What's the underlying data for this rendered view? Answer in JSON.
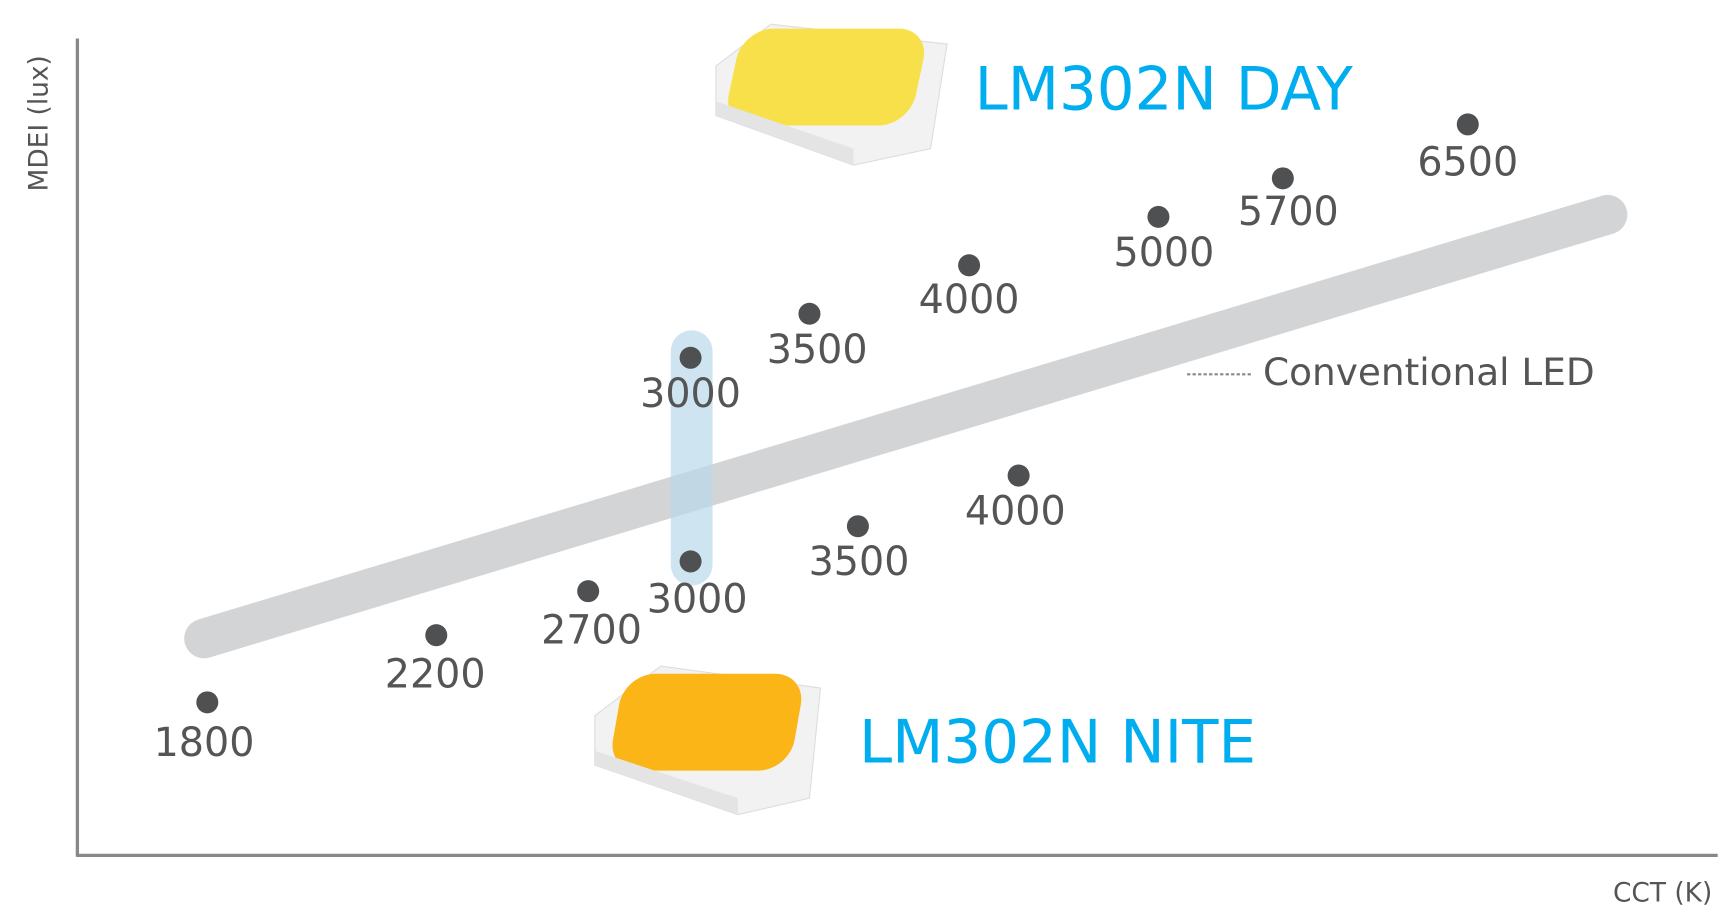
{
  "axes": {
    "y_label": "MDEI (lux)",
    "x_label": "CCT (K)"
  },
  "legend": {
    "label": "Conventional LED"
  },
  "products": [
    {
      "name": "LM302N DAY",
      "points": [
        "3000",
        "3500",
        "4000",
        "5000",
        "5700",
        "6500"
      ]
    },
    {
      "name": "LM302N NITE",
      "points": [
        "1800",
        "2200",
        "2700",
        "3000",
        "3500",
        "4000"
      ]
    }
  ]
}
